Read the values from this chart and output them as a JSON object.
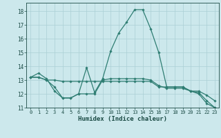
{
  "xlabel": "Humidex (Indice chaleur)",
  "ylabel": "",
  "xlim": [
    -0.5,
    23.5
  ],
  "ylim": [
    11,
    18.6
  ],
  "yticks": [
    11,
    12,
    13,
    14,
    15,
    16,
    17,
    18
  ],
  "xticks": [
    0,
    1,
    2,
    3,
    4,
    5,
    6,
    7,
    8,
    9,
    10,
    11,
    12,
    13,
    14,
    15,
    16,
    17,
    18,
    19,
    20,
    21,
    22,
    23
  ],
  "background_color": "#cce8ec",
  "grid_color": "#aacfd4",
  "line_color": "#2e7d72",
  "line1_x": [
    0,
    1,
    2,
    3,
    4,
    5,
    6,
    7,
    8,
    9,
    10,
    11,
    12,
    13,
    14,
    15,
    16,
    17,
    18,
    19,
    20,
    21,
    22,
    23
  ],
  "line1_y": [
    13.2,
    13.5,
    13.1,
    12.2,
    11.7,
    11.7,
    12.0,
    13.9,
    12.1,
    13.1,
    15.1,
    16.4,
    17.2,
    18.1,
    18.1,
    16.7,
    15.0,
    12.5,
    12.5,
    12.5,
    12.2,
    12.0,
    11.3,
    11.0
  ],
  "line2_x": [
    0,
    1,
    2,
    3,
    4,
    5,
    6,
    7,
    8,
    9,
    10,
    11,
    12,
    13,
    14,
    15,
    16,
    17,
    18,
    19,
    20,
    21,
    22,
    23
  ],
  "line2_y": [
    13.2,
    13.2,
    13.0,
    13.0,
    12.9,
    12.9,
    12.9,
    12.9,
    12.9,
    12.9,
    12.9,
    12.9,
    12.9,
    12.9,
    12.9,
    12.9,
    12.5,
    12.5,
    12.5,
    12.5,
    12.2,
    12.2,
    11.9,
    11.5
  ],
  "line3_x": [
    0,
    1,
    2,
    3,
    4,
    5,
    6,
    7,
    8,
    9,
    10,
    11,
    12,
    13,
    14,
    15,
    16,
    17,
    18,
    19,
    20,
    21,
    22,
    23
  ],
  "line3_y": [
    13.2,
    13.2,
    13.0,
    12.5,
    11.7,
    11.7,
    12.0,
    12.0,
    12.0,
    13.0,
    13.1,
    13.1,
    13.1,
    13.1,
    13.1,
    13.0,
    12.6,
    12.4,
    12.4,
    12.4,
    12.2,
    12.1,
    11.5,
    11.0
  ]
}
